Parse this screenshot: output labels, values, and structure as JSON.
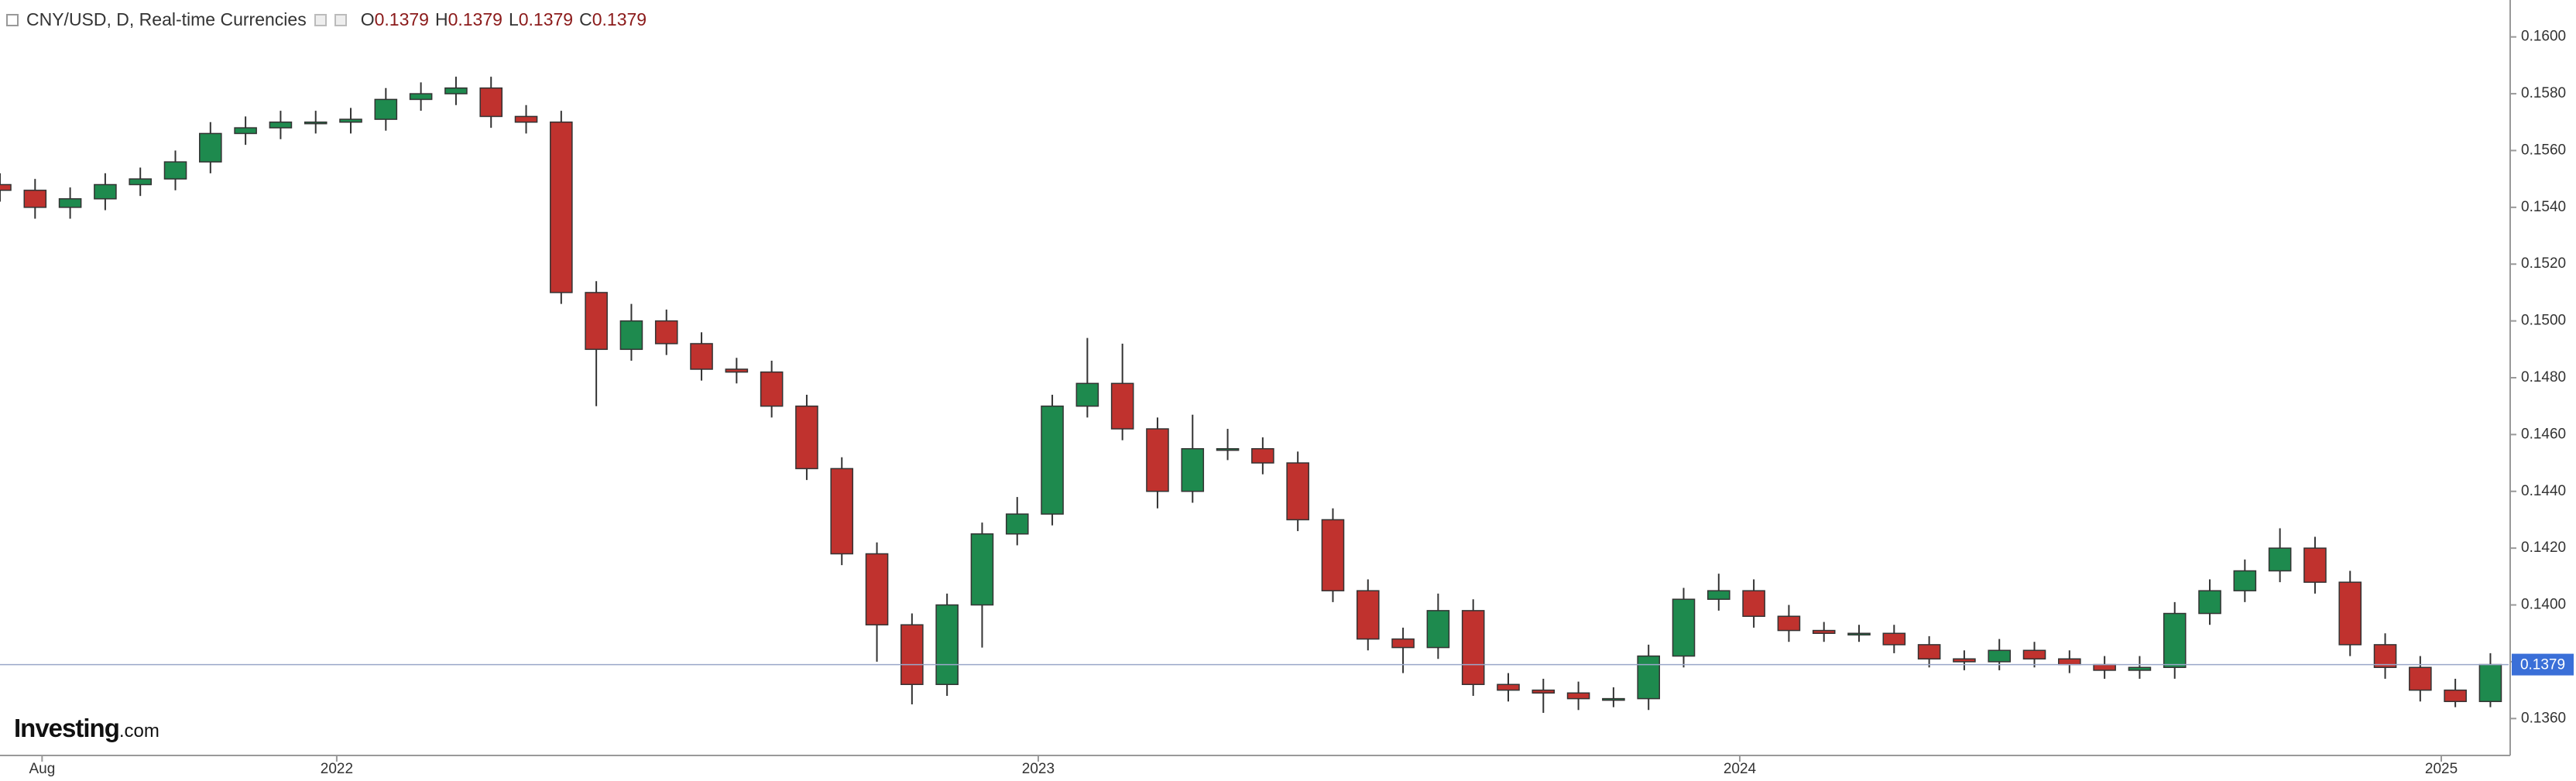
{
  "header": {
    "title": "CNY/USD, D, Real-time Currencies",
    "ohlc": [
      {
        "key": "O",
        "value": 0.1379
      },
      {
        "key": "H",
        "value": 0.1379
      },
      {
        "key": "L",
        "value": 0.1379
      },
      {
        "key": "C",
        "value": 0.1379
      }
    ]
  },
  "watermark": {
    "brand": "Investing",
    "suffix": ".com"
  },
  "chart_data": {
    "type": "candlestick",
    "x": [
      2021.52,
      2021.57,
      2021.62,
      2021.67,
      2021.72,
      2021.77,
      2021.82,
      2021.87,
      2021.92,
      2021.97,
      2022.02,
      2022.07,
      2022.12,
      2022.17,
      2022.22,
      2022.27,
      2022.32,
      2022.37,
      2022.42,
      2022.47,
      2022.52,
      2022.57,
      2022.62,
      2022.67,
      2022.72,
      2022.77,
      2022.82,
      2022.87,
      2022.92,
      2022.97,
      2023.02,
      2023.07,
      2023.12,
      2023.17,
      2023.22,
      2023.27,
      2023.32,
      2023.37,
      2023.42,
      2023.47,
      2023.52,
      2023.57,
      2023.62,
      2023.67,
      2023.72,
      2023.77,
      2023.82,
      2023.87,
      2023.92,
      2023.97,
      2024.02,
      2024.07,
      2024.12,
      2024.17,
      2024.22,
      2024.27,
      2024.32,
      2024.37,
      2024.42,
      2024.47,
      2024.52,
      2024.57,
      2024.62,
      2024.67,
      2024.72,
      2024.77,
      2024.82,
      2024.87,
      2024.92,
      2024.97,
      2025.02,
      2025.07
    ],
    "series": {
      "open": [
        0.1548,
        0.1546,
        0.154,
        0.1543,
        0.1548,
        0.155,
        0.1556,
        0.1566,
        0.1568,
        0.157,
        0.157,
        0.1571,
        0.1578,
        0.158,
        0.1582,
        0.1572,
        0.157,
        0.151,
        0.149,
        0.15,
        0.1492,
        0.1483,
        0.1482,
        0.147,
        0.1448,
        0.1418,
        0.1393,
        0.1372,
        0.14,
        0.1425,
        0.1432,
        0.147,
        0.1478,
        0.1462,
        0.144,
        0.1455,
        0.1455,
        0.145,
        0.143,
        0.1405,
        0.1388,
        0.1385,
        0.1398,
        0.1372,
        0.137,
        0.1369,
        0.1367,
        0.1367,
        0.1382,
        0.1402,
        0.1405,
        0.1396,
        0.1391,
        0.139,
        0.139,
        0.1386,
        0.1381,
        0.138,
        0.1384,
        0.1381,
        0.1379,
        0.1377,
        0.1378,
        0.1397,
        0.1405,
        0.1412,
        0.142,
        0.1408,
        0.1386,
        0.1378,
        0.137,
        0.1366
      ],
      "high": [
        0.1552,
        0.155,
        0.1547,
        0.1552,
        0.1554,
        0.156,
        0.157,
        0.1572,
        0.1574,
        0.1574,
        0.1575,
        0.1582,
        0.1584,
        0.1586,
        0.1586,
        0.1576,
        0.1574,
        0.1514,
        0.1506,
        0.1504,
        0.1496,
        0.1487,
        0.1486,
        0.1474,
        0.1452,
        0.1422,
        0.1397,
        0.1404,
        0.1429,
        0.1438,
        0.1474,
        0.1494,
        0.1492,
        0.1466,
        0.1467,
        0.1462,
        0.1459,
        0.1454,
        0.1434,
        0.1409,
        0.1392,
        0.1404,
        0.1402,
        0.1376,
        0.1374,
        0.1373,
        0.1371,
        0.1386,
        0.1406,
        0.1411,
        0.1409,
        0.14,
        0.1394,
        0.1393,
        0.1393,
        0.1389,
        0.1384,
        0.1388,
        0.1387,
        0.1384,
        0.1382,
        0.1382,
        0.1401,
        0.1409,
        0.1416,
        0.1427,
        0.1424,
        0.1412,
        0.139,
        0.1382,
        0.1374,
        0.1383
      ],
      "low": [
        0.1542,
        0.1536,
        0.1536,
        0.1539,
        0.1544,
        0.1546,
        0.1552,
        0.1562,
        0.1564,
        0.1566,
        0.1566,
        0.1567,
        0.1574,
        0.1576,
        0.1568,
        0.1566,
        0.1506,
        0.147,
        0.1486,
        0.1488,
        0.1479,
        0.1478,
        0.1466,
        0.1444,
        0.1414,
        0.138,
        0.1365,
        0.1368,
        0.1385,
        0.1421,
        0.1428,
        0.1466,
        0.1458,
        0.1434,
        0.1436,
        0.1451,
        0.1446,
        0.1426,
        0.1401,
        0.1384,
        0.1376,
        0.1381,
        0.1368,
        0.1366,
        0.1362,
        0.1363,
        0.1364,
        0.1363,
        0.1378,
        0.1398,
        0.1392,
        0.1387,
        0.1387,
        0.1387,
        0.1383,
        0.1378,
        0.1377,
        0.1377,
        0.1378,
        0.1376,
        0.1374,
        0.1374,
        0.1374,
        0.1393,
        0.1401,
        0.1408,
        0.1404,
        0.1382,
        0.1374,
        0.1366,
        0.1364,
        0.1364
      ],
      "close": [
        0.1546,
        0.154,
        0.1543,
        0.1548,
        0.155,
        0.1556,
        0.1566,
        0.1568,
        0.157,
        0.157,
        0.1571,
        0.1578,
        0.158,
        0.1582,
        0.1572,
        0.157,
        0.151,
        0.149,
        0.15,
        0.1492,
        0.1483,
        0.1482,
        0.147,
        0.1448,
        0.1418,
        0.1393,
        0.1372,
        0.14,
        0.1425,
        0.1432,
        0.147,
        0.1478,
        0.1462,
        0.144,
        0.1455,
        0.1455,
        0.145,
        0.143,
        0.1405,
        0.1388,
        0.1385,
        0.1398,
        0.1372,
        0.137,
        0.1369,
        0.1367,
        0.1367,
        0.1382,
        0.1402,
        0.1405,
        0.1396,
        0.1391,
        0.139,
        0.139,
        0.1386,
        0.1381,
        0.138,
        0.1384,
        0.1381,
        0.1379,
        0.1377,
        0.1378,
        0.1397,
        0.1405,
        0.1412,
        0.142,
        0.1408,
        0.1386,
        0.1378,
        0.137,
        0.1366,
        0.1379
      ]
    },
    "up_color": "#1e8a4e",
    "down_color": "#c0322e",
    "last_price_color": "#3a6fd8",
    "last_price": 0.1379,
    "xlim": [
      2021.52,
      2025.096
    ],
    "xticks": [
      {
        "value": 2021.58,
        "label": "Aug"
      },
      2022,
      2023,
      2024,
      2025
    ],
    "ylim": [
      0.1347,
      0.1613
    ],
    "yticks": [
      {
        "value": 0.136,
        "label": "0.1360"
      },
      {
        "value": 0.138,
        "label": "0.1380"
      },
      {
        "value": 0.14,
        "label": "0.1400"
      },
      {
        "value": 0.142,
        "label": "0.1420"
      },
      {
        "value": 0.144,
        "label": "0.1440"
      },
      {
        "value": 0.146,
        "label": "0.1460"
      },
      {
        "value": 0.148,
        "label": "0.1480"
      },
      {
        "value": 0.15,
        "label": "0.1500"
      },
      {
        "value": 0.152,
        "label": "0.1520"
      },
      {
        "value": 0.154,
        "label": "0.1540"
      },
      {
        "value": 0.156,
        "label": "0.1560"
      },
      {
        "value": 0.158,
        "label": "0.1580"
      },
      {
        "value": 0.16,
        "label": "0.1600"
      }
    ]
  }
}
